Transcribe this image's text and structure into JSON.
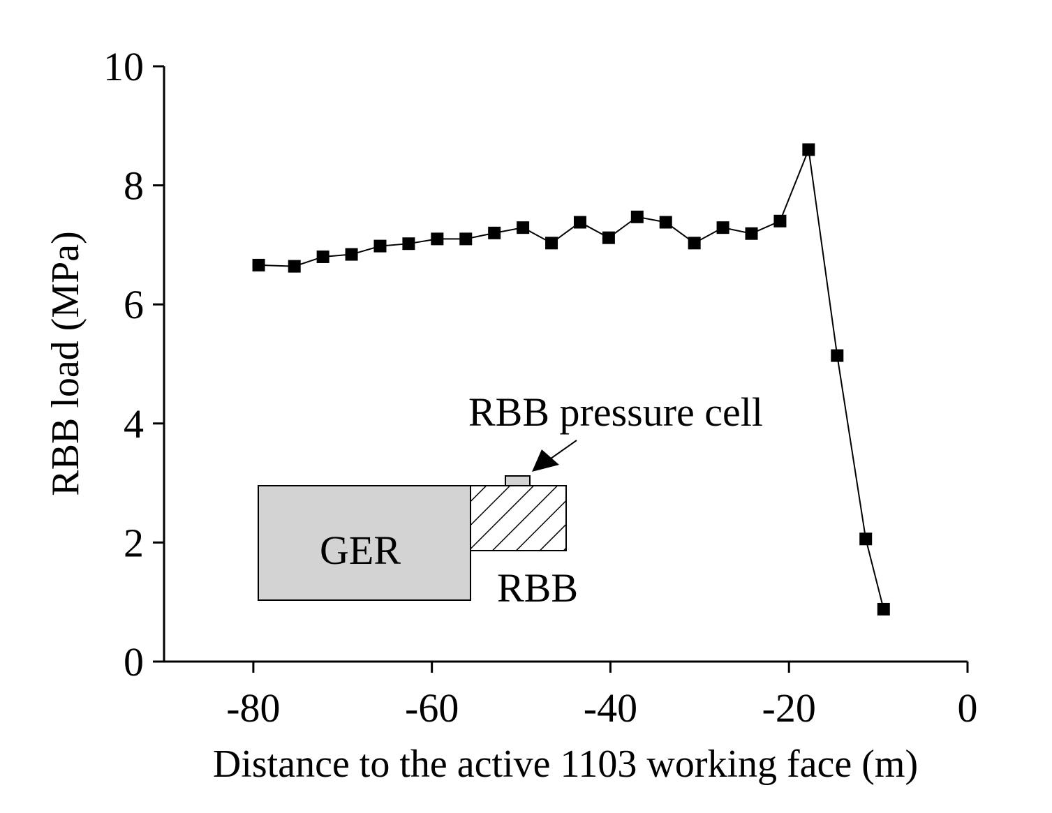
{
  "chart_data": {
    "type": "line",
    "title": "",
    "xlabel": "Distance to the active 1103 working face (m)",
    "ylabel": "RBB load (MPa)",
    "xlim": [
      -90,
      0
    ],
    "ylim": [
      0,
      10
    ],
    "xticks": [
      -80,
      -60,
      -40,
      -20,
      0
    ],
    "yticks": [
      0,
      2,
      4,
      6,
      8,
      10
    ],
    "xtick_labels": [
      "-80",
      "-60",
      "-40",
      "-20",
      "0"
    ],
    "ytick_labels": [
      "0",
      "2",
      "4",
      "6",
      "8",
      "10"
    ],
    "grid": false,
    "legend": "none",
    "series": [
      {
        "name": "RBB load",
        "marker": "square",
        "color": "#000000",
        "x": [
          -79.4,
          -75.4,
          -72.2,
          -69.0,
          -65.8,
          -62.6,
          -59.4,
          -56.2,
          -53.0,
          -49.8,
          -46.6,
          -43.4,
          -40.2,
          -37.0,
          -33.8,
          -30.6,
          -27.4,
          -24.2,
          -21.0,
          -17.8,
          -14.6,
          -11.4,
          -9.4
        ],
        "y": [
          6.66,
          6.64,
          6.8,
          6.84,
          6.98,
          7.02,
          7.1,
          7.1,
          7.2,
          7.29,
          7.03,
          7.38,
          7.12,
          7.47,
          7.38,
          7.03,
          7.29,
          7.19,
          7.4,
          8.6,
          5.14,
          2.06,
          0.88
        ]
      }
    ],
    "annotations": {
      "ger_label": "GER",
      "rbb_label": "RBB",
      "cell_label": "RBB pressure cell"
    },
    "colors": {
      "line": "#000000",
      "ger_fill": "#d3d3d3",
      "cell_fill": "#d3d3d3"
    }
  }
}
